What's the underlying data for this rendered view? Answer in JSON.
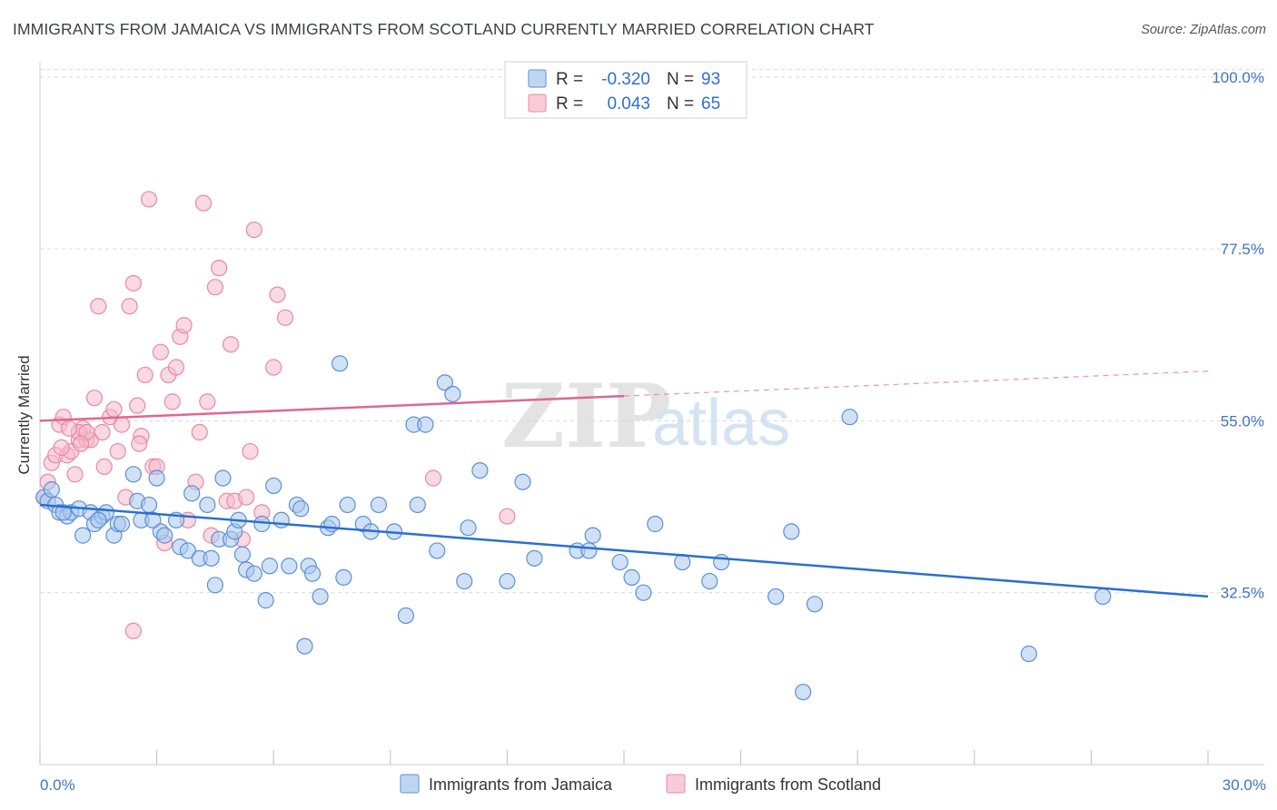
{
  "header": {
    "title": "IMMIGRANTS FROM JAMAICA VS IMMIGRANTS FROM SCOTLAND CURRENTLY MARRIED CORRELATION CHART",
    "source": "Source: ZipAtlas.com"
  },
  "watermark": {
    "part1": "ZIP",
    "part2": "atlas"
  },
  "colors": {
    "jamaica_fill": "#a9c8ef",
    "jamaica_stroke": "#5b8fd6",
    "jamaica_line": "#2a6fd0",
    "scotland_fill": "#f6b9cb",
    "scotland_stroke": "#e889a6",
    "scotland_line": "#e0668e",
    "tick_label": "#3a76c4",
    "grid": "#d8d8d8"
  },
  "legend_top": {
    "rows": [
      {
        "r_label": "R =",
        "r_value": "-0.320",
        "n_label": "N =",
        "n_value": "93"
      },
      {
        "r_label": "R =",
        "r_value": "0.043",
        "n_label": "N =",
        "n_value": "65"
      }
    ]
  },
  "chart_data": {
    "type": "scatter",
    "title": "IMMIGRANTS FROM JAMAICA VS IMMIGRANTS FROM SCOTLAND CURRENTLY MARRIED CORRELATION CHART",
    "xlabel": "",
    "ylabel": "Currently Married",
    "xlim": [
      0,
      30
    ],
    "ylim": [
      10,
      102
    ],
    "x_tick_labels": [
      "0.0%",
      "30.0%"
    ],
    "y_ticks": [
      32.5,
      55.0,
      77.5,
      100.0
    ],
    "y_tick_labels": [
      "32.5%",
      "55.0%",
      "77.5%",
      "100.0%"
    ],
    "grid": "horizontal dashed",
    "legend_position": "top-center and bottom",
    "series": [
      {
        "name": "Immigrants from Jamaica",
        "r": -0.32,
        "n": 93,
        "trend": {
          "x": [
            0,
            30
          ],
          "y": [
            44.0,
            32.0
          ],
          "dashed_from": null
        },
        "points": [
          [
            0.1,
            45.0
          ],
          [
            0.2,
            44.5
          ],
          [
            0.4,
            44.0
          ],
          [
            0.5,
            43.0
          ],
          [
            0.7,
            42.5
          ],
          [
            0.8,
            43.0
          ],
          [
            1.0,
            43.5
          ],
          [
            1.1,
            40.0
          ],
          [
            1.3,
            43.0
          ],
          [
            1.4,
            41.5
          ],
          [
            1.6,
            42.5
          ],
          [
            1.7,
            43.0
          ],
          [
            1.9,
            40.0
          ],
          [
            2.0,
            41.5
          ],
          [
            2.1,
            41.5
          ],
          [
            2.4,
            48.0
          ],
          [
            2.5,
            44.5
          ],
          [
            2.6,
            42.0
          ],
          [
            2.8,
            44.0
          ],
          [
            3.0,
            47.5
          ],
          [
            3.1,
            40.5
          ],
          [
            3.2,
            40.0
          ],
          [
            3.5,
            42.0
          ],
          [
            3.6,
            38.5
          ],
          [
            3.8,
            38.0
          ],
          [
            3.9,
            45.5
          ],
          [
            4.1,
            37.0
          ],
          [
            4.3,
            44.0
          ],
          [
            4.4,
            37.0
          ],
          [
            4.5,
            33.5
          ],
          [
            4.6,
            39.5
          ],
          [
            4.7,
            47.5
          ],
          [
            4.9,
            39.5
          ],
          [
            5.0,
            40.5
          ],
          [
            5.1,
            42.0
          ],
          [
            5.2,
            37.5
          ],
          [
            5.3,
            35.5
          ],
          [
            5.5,
            35.0
          ],
          [
            5.7,
            41.5
          ],
          [
            5.8,
            31.5
          ],
          [
            5.9,
            36.0
          ],
          [
            6.0,
            46.5
          ],
          [
            6.2,
            42.0
          ],
          [
            6.4,
            36.0
          ],
          [
            6.6,
            44.0
          ],
          [
            6.7,
            43.5
          ],
          [
            6.9,
            36.0
          ],
          [
            7.0,
            35.0
          ],
          [
            7.2,
            32.0
          ],
          [
            7.4,
            41.0
          ],
          [
            7.5,
            41.5
          ],
          [
            7.7,
            62.5
          ],
          [
            7.8,
            34.5
          ],
          [
            7.9,
            44.0
          ],
          [
            8.3,
            41.5
          ],
          [
            8.5,
            40.5
          ],
          [
            8.7,
            44.0
          ],
          [
            9.1,
            40.5
          ],
          [
            9.4,
            29.5
          ],
          [
            9.6,
            54.5
          ],
          [
            9.7,
            44.0
          ],
          [
            9.9,
            54.5
          ],
          [
            10.2,
            38.0
          ],
          [
            10.4,
            60.0
          ],
          [
            10.6,
            58.5
          ],
          [
            10.9,
            34.0
          ],
          [
            11.0,
            41.0
          ],
          [
            11.3,
            48.5
          ],
          [
            12.0,
            34.0
          ],
          [
            12.4,
            47.0
          ],
          [
            12.7,
            37.0
          ],
          [
            13.8,
            38.0
          ],
          [
            14.1,
            38.0
          ],
          [
            14.2,
            40.0
          ],
          [
            14.9,
            36.5
          ],
          [
            15.2,
            34.5
          ],
          [
            15.5,
            32.5
          ],
          [
            15.8,
            41.5
          ],
          [
            16.5,
            36.5
          ],
          [
            17.2,
            34.0
          ],
          [
            17.5,
            36.5
          ],
          [
            18.9,
            32.0
          ],
          [
            19.3,
            40.5
          ],
          [
            19.6,
            19.5
          ],
          [
            19.9,
            31.0
          ],
          [
            20.8,
            55.5
          ],
          [
            25.4,
            24.5
          ],
          [
            27.3,
            32.0
          ],
          [
            0.3,
            46.0
          ],
          [
            1.5,
            42.0
          ],
          [
            6.8,
            25.5
          ],
          [
            2.9,
            42.0
          ],
          [
            0.6,
            43.0
          ]
        ]
      },
      {
        "name": "Immigrants from Scotland",
        "r": 0.043,
        "n": 65,
        "trend": {
          "x": [
            0,
            30
          ],
          "y": [
            55.0,
            61.5
          ],
          "dashed_from": 15
        },
        "points": [
          [
            0.1,
            45.0
          ],
          [
            0.2,
            47.0
          ],
          [
            0.3,
            49.5
          ],
          [
            0.4,
            50.5
          ],
          [
            0.5,
            54.5
          ],
          [
            0.6,
            55.5
          ],
          [
            0.7,
            50.5
          ],
          [
            0.8,
            51.0
          ],
          [
            0.9,
            48.0
          ],
          [
            1.0,
            52.5
          ],
          [
            1.1,
            54.0
          ],
          [
            1.2,
            52.5
          ],
          [
            1.3,
            52.5
          ],
          [
            1.4,
            58.0
          ],
          [
            1.5,
            70.0
          ],
          [
            1.6,
            53.5
          ],
          [
            1.8,
            55.5
          ],
          [
            1.9,
            56.5
          ],
          [
            2.0,
            51.0
          ],
          [
            2.1,
            54.5
          ],
          [
            2.2,
            45.0
          ],
          [
            2.3,
            70.0
          ],
          [
            2.4,
            73.0
          ],
          [
            2.5,
            57.0
          ],
          [
            2.6,
            53.0
          ],
          [
            2.7,
            61.0
          ],
          [
            2.8,
            84.0
          ],
          [
            2.9,
            49.0
          ],
          [
            3.0,
            49.0
          ],
          [
            3.1,
            64.0
          ],
          [
            3.2,
            39.0
          ],
          [
            3.3,
            61.0
          ],
          [
            3.4,
            57.5
          ],
          [
            3.5,
            62.0
          ],
          [
            3.6,
            66.0
          ],
          [
            3.7,
            67.5
          ],
          [
            3.8,
            42.0
          ],
          [
            4.0,
            47.0
          ],
          [
            4.1,
            53.5
          ],
          [
            4.2,
            83.5
          ],
          [
            4.3,
            57.5
          ],
          [
            4.4,
            40.0
          ],
          [
            4.5,
            72.5
          ],
          [
            4.6,
            75.0
          ],
          [
            4.8,
            44.5
          ],
          [
            4.9,
            65.0
          ],
          [
            5.0,
            44.5
          ],
          [
            5.2,
            39.5
          ],
          [
            5.3,
            45.0
          ],
          [
            5.4,
            51.0
          ],
          [
            5.5,
            80.0
          ],
          [
            5.7,
            43.0
          ],
          [
            6.0,
            62.0
          ],
          [
            6.1,
            71.5
          ],
          [
            6.3,
            68.5
          ],
          [
            1.0,
            53.5
          ],
          [
            1.2,
            53.5
          ],
          [
            2.4,
            27.5
          ],
          [
            10.1,
            47.5
          ],
          [
            12.0,
            42.5
          ],
          [
            0.55,
            51.5
          ],
          [
            0.75,
            54.0
          ],
          [
            1.05,
            52.0
          ],
          [
            1.65,
            49.0
          ],
          [
            2.55,
            52.0
          ]
        ]
      }
    ]
  },
  "legend_bottom": {
    "items": [
      {
        "label": "Immigrants from Jamaica"
      },
      {
        "label": "Immigrants from Scotland"
      }
    ]
  }
}
